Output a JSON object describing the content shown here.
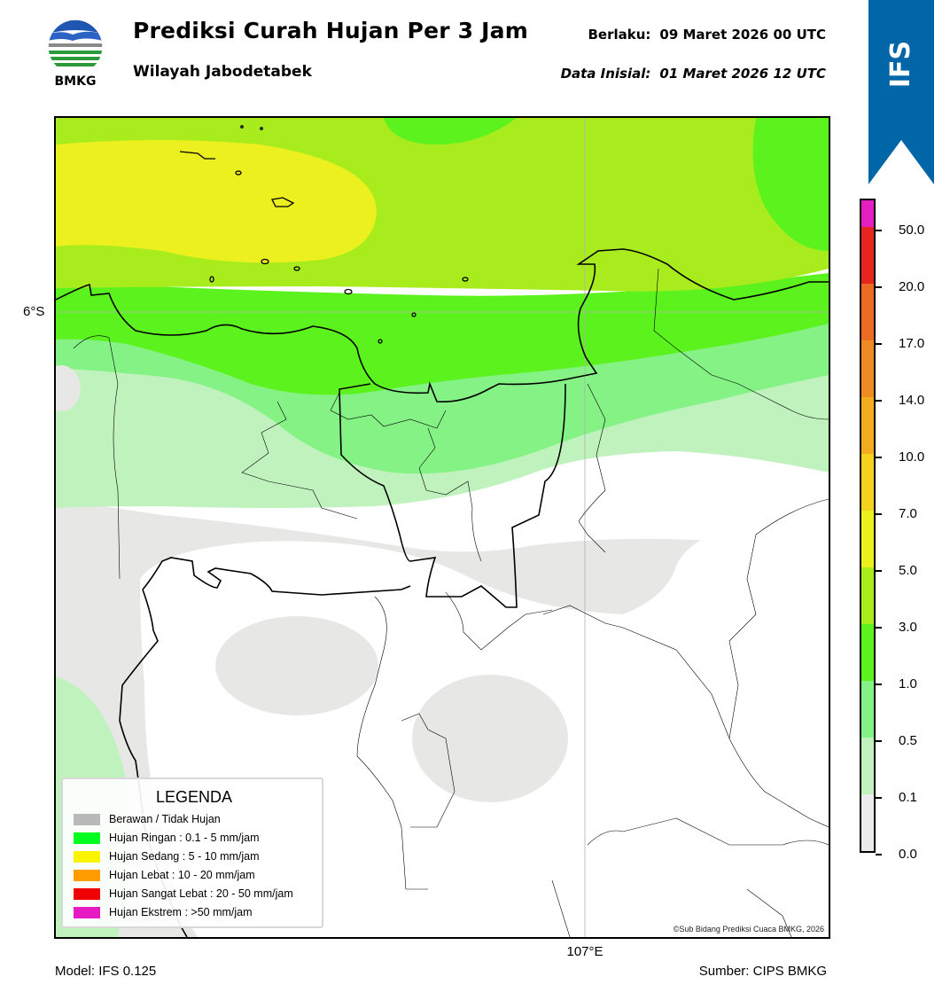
{
  "header": {
    "logo_text": "BMKG",
    "title": "Prediksi Curah Hujan Per 3 Jam",
    "subtitle": "Wilayah Jabodetabek",
    "valid_label": "Berlaku:",
    "valid_value": "09 Maret 2026 00 UTC",
    "init_label": "Data Inisial:",
    "init_value": "01 Maret 2026 12 UTC"
  },
  "ribbon": {
    "label": "IFS",
    "color": "#0066a8"
  },
  "map": {
    "lat_label": "6°S",
    "lon_label": "107°E",
    "copyright": "©Sub Bidang Prediksi Cuaca BMKG, 2026",
    "region": "Jabodetabek"
  },
  "legend": {
    "title": "LEGENDA",
    "items": [
      {
        "label": "Berawan / Tidak Hujan",
        "color": "#b9b9b9"
      },
      {
        "label": "Hujan Ringan : 0.1 - 5 mm/jam",
        "color": "#00ff1e"
      },
      {
        "label": "Hujan Sedang : 5 - 10 mm/jam",
        "color": "#fbf400"
      },
      {
        "label": "Hujan Lebat : 10 - 20 mm/jam",
        "color": "#ff9c00"
      },
      {
        "label": "Hujan Sangat Lebat : 20 - 50 mm/jam",
        "color": "#f00000"
      },
      {
        "label": "Hujan Ekstrem : >50 mm/jam",
        "color": "#e619c2"
      }
    ]
  },
  "colorbar": {
    "ticks": [
      "0.0",
      "0.1",
      "0.5",
      "1.0",
      "3.0",
      "5.0",
      "7.0",
      "10.0",
      "14.0",
      "17.0",
      "20.0",
      "50.0"
    ],
    "colors": [
      "#ececec",
      "#bff2bd",
      "#85f285",
      "#5cf21e",
      "#a8ec1e",
      "#ecf01e",
      "#f4d21e",
      "#f2ac1e",
      "#f08a22",
      "#ec6a22",
      "#e8241e",
      "#e41ec0"
    ]
  },
  "footer": {
    "model": "Model: IFS 0.125",
    "source": "Sumber: CIPS BMKG"
  }
}
